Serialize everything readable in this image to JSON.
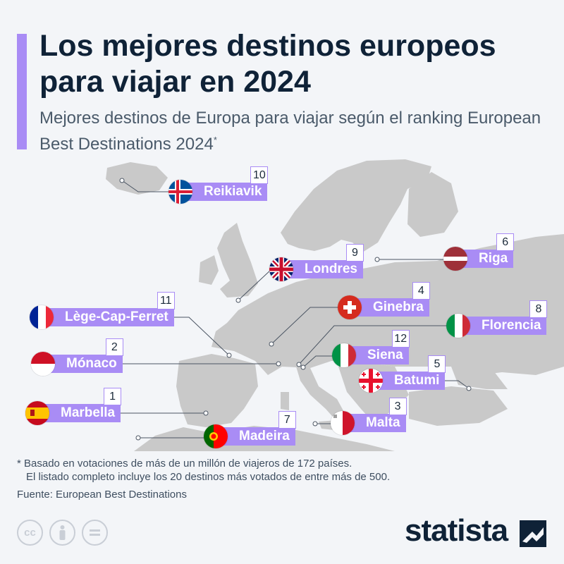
{
  "title": "Los mejores destinos europeos para viajar en 2024",
  "subtitle_main": "Mejores destinos de Europa para viajar según el ranking European Best Destinations 2024",
  "subtitle_mark": "*",
  "destinations": [
    {
      "rank": "10",
      "name": "Reikiavik",
      "flag": "iceland-flag"
    },
    {
      "rank": "6",
      "name": "Riga",
      "flag": "latvia-flag"
    },
    {
      "rank": "9",
      "name": "Londres",
      "flag": "uk-flag"
    },
    {
      "rank": "4",
      "name": "Ginebra",
      "flag": "switzerland-flag"
    },
    {
      "rank": "11",
      "name": "Lège-Cap-Ferret",
      "flag": "france-flag"
    },
    {
      "rank": "8",
      "name": "Florencia",
      "flag": "italy-flag"
    },
    {
      "rank": "2",
      "name": "Mónaco",
      "flag": "monaco-flag"
    },
    {
      "rank": "12",
      "name": "Siena",
      "flag": "italy-flag"
    },
    {
      "rank": "5",
      "name": "Batumi",
      "flag": "georgia-flag"
    },
    {
      "rank": "1",
      "name": "Marbella",
      "flag": "spain-flag"
    },
    {
      "rank": "3",
      "name": "Malta",
      "flag": "malta-flag"
    },
    {
      "rank": "7",
      "name": "Madeira",
      "flag": "portugal-flag"
    }
  ],
  "footnote_line1": "* Basado en votaciones de más de un millón de viajeros de 172 países.",
  "footnote_line2": "El listado completo incluye los 20 destinos más votados de entre más de 500.",
  "source": "Fuente: European Best Destinations",
  "license_icons": [
    "cc-icon",
    "attribution-icon",
    "no-derivatives-icon"
  ],
  "brand": "statista",
  "colors": {
    "accent": "#a98cf5",
    "land": "#c7c7c7",
    "sea": "#f3f5f8",
    "title": "#0f2237"
  }
}
